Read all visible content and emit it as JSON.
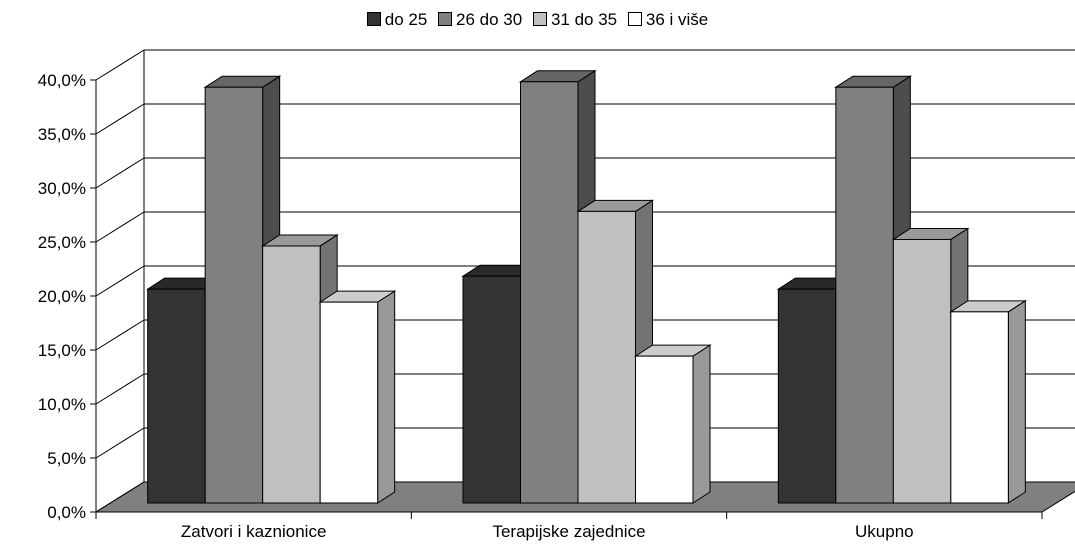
{
  "chart_data": {
    "type": "bar",
    "categories": [
      "Zatvori i kaznionice",
      "Terapijske zajednice",
      "Ukupno"
    ],
    "series": [
      {
        "name": "do 25",
        "values": [
          19.8,
          21.0,
          19.8
        ],
        "color": "#333333"
      },
      {
        "name": "26 do 30",
        "values": [
          38.5,
          39.0,
          38.5
        ],
        "color": "#808080"
      },
      {
        "name": "31 do 35",
        "values": [
          23.8,
          27.0,
          24.4
        ],
        "color": "#c0c0c0"
      },
      {
        "name": "36  i više",
        "values": [
          18.6,
          13.6,
          17.7
        ],
        "color": "#ffffff"
      }
    ],
    "ylim": [
      0,
      40
    ],
    "yticks": [
      "0,0%",
      "5,0%",
      "10,0%",
      "15,0%",
      "20,0%",
      "25,0%",
      "30,0%",
      "35,0%",
      "40,0%"
    ],
    "legend_position": "top",
    "grid": true,
    "three_d": true,
    "floor_color": "#808080"
  }
}
